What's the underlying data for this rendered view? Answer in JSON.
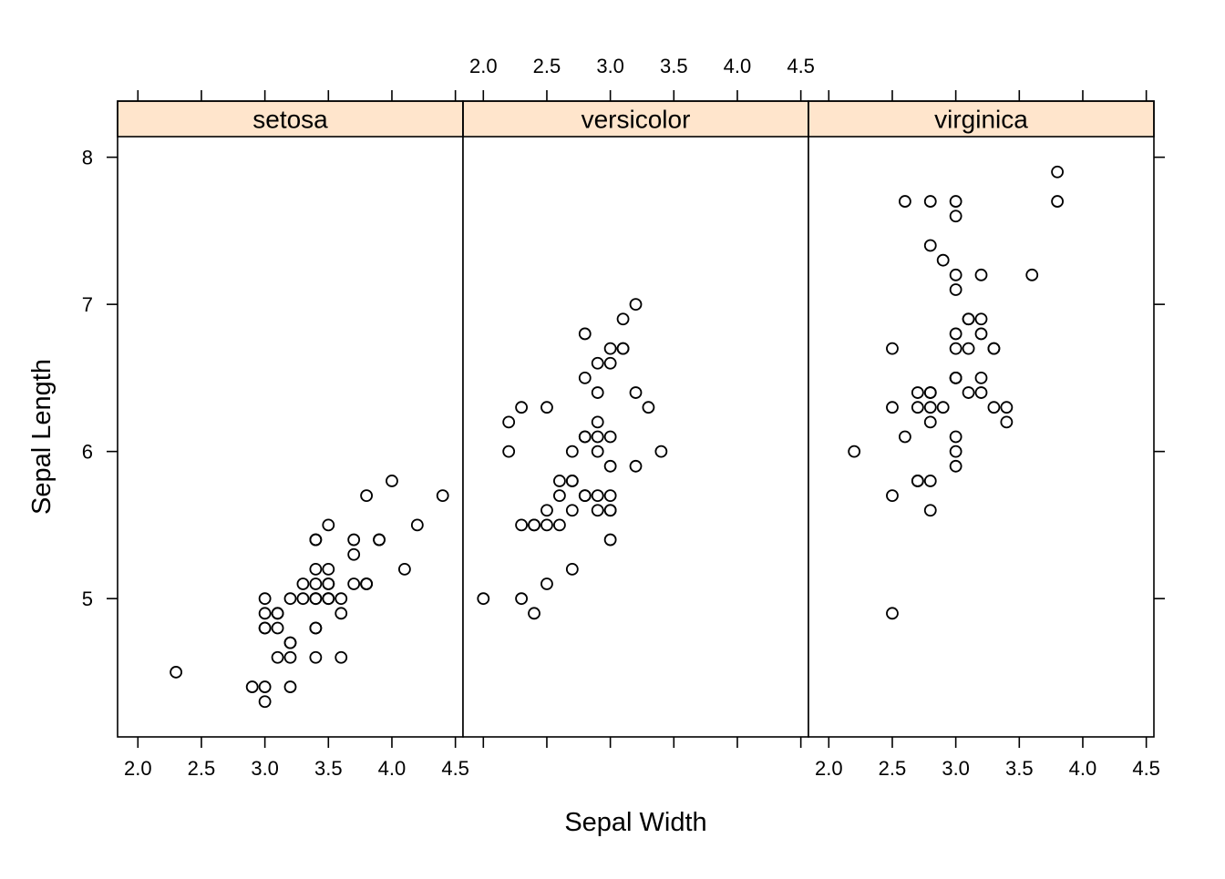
{
  "chart_data": {
    "type": "scatter",
    "title": "",
    "xlabel": "Sepal Width",
    "ylabel": "Sepal Length",
    "xlim": [
      1.84,
      4.56
    ],
    "ylim": [
      4.06,
      8.14
    ],
    "x_ticks": [
      "2.0",
      "2.5",
      "3.0",
      "3.5",
      "4.0",
      "4.5"
    ],
    "y_ticks": [
      "5",
      "6",
      "7",
      "8"
    ],
    "strip_color": "#ffe5cc",
    "point_color": "#000000",
    "marker": "open-circle",
    "panels": [
      {
        "label": "setosa",
        "x": [
          3.5,
          3.0,
          3.2,
          3.1,
          3.6,
          3.9,
          3.4,
          3.4,
          2.9,
          3.1,
          3.7,
          3.4,
          3.0,
          3.0,
          4.0,
          4.4,
          3.9,
          3.5,
          3.8,
          3.8,
          3.4,
          3.7,
          3.6,
          3.3,
          3.4,
          3.0,
          3.4,
          3.5,
          3.4,
          3.2,
          3.1,
          3.4,
          4.1,
          4.2,
          3.1,
          3.2,
          3.5,
          3.6,
          3.0,
          3.4,
          3.5,
          2.3,
          3.2,
          3.5,
          3.8,
          3.0,
          3.8,
          3.2,
          3.7,
          3.3
        ],
        "y": [
          5.1,
          4.9,
          4.7,
          4.6,
          5.0,
          5.4,
          4.6,
          5.0,
          4.4,
          4.9,
          5.4,
          4.8,
          4.8,
          4.3,
          5.8,
          5.7,
          5.4,
          5.1,
          5.7,
          5.1,
          5.4,
          5.1,
          4.6,
          5.1,
          4.8,
          5.0,
          5.0,
          5.2,
          5.2,
          4.7,
          4.8,
          5.4,
          5.2,
          5.5,
          4.9,
          5.0,
          5.5,
          4.9,
          4.4,
          5.1,
          5.0,
          4.5,
          4.4,
          5.0,
          5.1,
          4.8,
          5.1,
          4.6,
          5.3,
          5.0
        ]
      },
      {
        "label": "versicolor",
        "x": [
          3.2,
          3.2,
          3.1,
          2.3,
          2.8,
          2.8,
          3.3,
          2.4,
          2.9,
          2.7,
          2.0,
          3.0,
          2.2,
          2.9,
          2.9,
          3.1,
          3.0,
          2.7,
          2.2,
          2.5,
          3.2,
          2.8,
          2.5,
          2.8,
          2.9,
          3.0,
          2.8,
          3.0,
          2.9,
          2.6,
          2.4,
          2.4,
          2.7,
          2.7,
          3.0,
          3.4,
          3.1,
          2.3,
          3.0,
          2.5,
          2.6,
          3.0,
          2.6,
          2.3,
          2.7,
          3.0,
          2.9,
          2.9,
          2.5,
          2.8
        ],
        "y": [
          7.0,
          6.4,
          6.9,
          5.5,
          6.5,
          5.7,
          6.3,
          4.9,
          6.6,
          5.2,
          5.0,
          5.9,
          6.0,
          6.1,
          5.6,
          6.7,
          5.6,
          5.8,
          6.2,
          5.6,
          5.9,
          6.1,
          6.3,
          6.1,
          6.4,
          6.6,
          6.8,
          6.7,
          6.0,
          5.7,
          5.5,
          5.5,
          5.8,
          6.0,
          5.4,
          6.0,
          6.7,
          6.3,
          5.6,
          5.5,
          5.5,
          6.1,
          5.8,
          5.0,
          5.6,
          5.7,
          5.7,
          6.2,
          5.1,
          5.7
        ]
      },
      {
        "label": "virginica",
        "x": [
          3.3,
          2.7,
          3.0,
          2.9,
          3.0,
          3.0,
          2.5,
          2.9,
          2.5,
          3.6,
          3.2,
          2.7,
          3.0,
          2.5,
          2.8,
          3.2,
          3.0,
          3.8,
          2.6,
          2.2,
          3.2,
          2.8,
          2.8,
          2.7,
          3.3,
          3.2,
          2.8,
          3.0,
          2.8,
          3.0,
          2.8,
          3.8,
          2.8,
          2.8,
          2.6,
          3.0,
          3.4,
          3.1,
          3.0,
          3.1,
          3.1,
          3.1,
          2.7,
          3.2,
          3.3,
          3.0,
          2.5,
          3.0,
          3.4,
          3.0
        ],
        "y": [
          6.3,
          5.8,
          7.1,
          6.3,
          6.5,
          7.6,
          4.9,
          7.3,
          6.7,
          7.2,
          6.5,
          6.4,
          6.8,
          5.7,
          5.8,
          6.4,
          6.5,
          7.7,
          7.7,
          6.0,
          6.9,
          5.6,
          7.7,
          6.3,
          6.7,
          7.2,
          6.2,
          6.1,
          6.4,
          7.2,
          7.4,
          7.9,
          6.4,
          6.3,
          6.1,
          7.7,
          6.3,
          6.4,
          6.0,
          6.9,
          6.7,
          6.9,
          5.8,
          6.8,
          6.7,
          6.7,
          6.3,
          6.5,
          6.2,
          5.9
        ]
      }
    ]
  }
}
